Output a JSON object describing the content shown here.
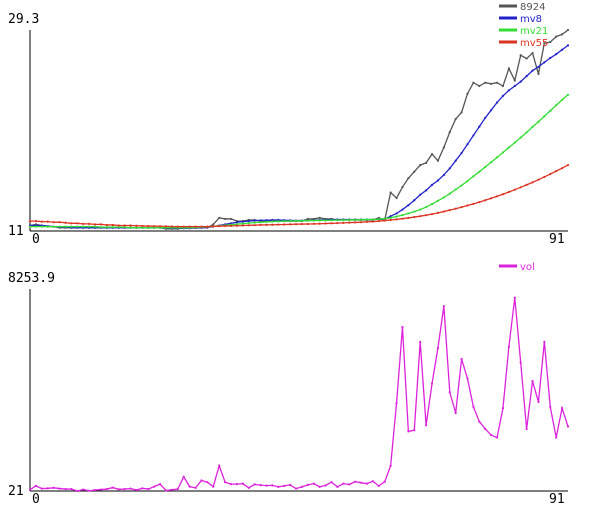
{
  "chart_data": [
    {
      "type": "line",
      "x_range": [
        0,
        91
      ],
      "y_range": [
        11,
        29.3
      ],
      "tick_labels": {
        "x_min": "0",
        "x_max": "91",
        "y_min": "11",
        "y_max": "29.3"
      },
      "grid": false,
      "legend_position": "top-right",
      "series": [
        {
          "name": "8924",
          "color": "#555555",
          "values": [
            11.5,
            11.6,
            11.5,
            11.4,
            11.4,
            11.3,
            11.3,
            11.3,
            11.3,
            11.3,
            11.3,
            11.3,
            11.3,
            11.3,
            11.3,
            11.3,
            11.3,
            11.3,
            11.3,
            11.3,
            11.3,
            11.3,
            11.3,
            11.2,
            11.2,
            11.2,
            11.3,
            11.3,
            11.3,
            11.3,
            11.3,
            11.6,
            12.2,
            12.1,
            12.1,
            11.9,
            11.9,
            12.0,
            12.0,
            11.9,
            11.9,
            11.9,
            11.9,
            11.9,
            11.9,
            11.9,
            11.9,
            12.1,
            12.1,
            12.2,
            12.1,
            12.1,
            12.0,
            12.0,
            12.0,
            12.0,
            12.0,
            12.0,
            12.0,
            12.2,
            12.0,
            14.5,
            14.0,
            15.0,
            15.8,
            16.4,
            17.0,
            17.2,
            18.0,
            17.4,
            18.6,
            20.0,
            21.2,
            21.8,
            23.5,
            24.5,
            24.2,
            24.5,
            24.4,
            24.5,
            24.2,
            25.8,
            24.7,
            27.0,
            26.7,
            27.2,
            25.3,
            28.1,
            28.2,
            28.7,
            28.9,
            29.3
          ]
        },
        {
          "name": "mv8",
          "color": "#2222cc",
          "values": [
            11.5,
            11.5,
            11.5,
            11.45,
            11.4,
            11.35,
            11.35,
            11.3,
            11.3,
            11.3,
            11.3,
            11.3,
            11.3,
            11.3,
            11.3,
            11.3,
            11.3,
            11.3,
            11.3,
            11.3,
            11.3,
            11.3,
            11.3,
            11.27,
            11.25,
            11.25,
            11.25,
            11.25,
            11.27,
            11.3,
            11.33,
            11.4,
            11.5,
            11.6,
            11.7,
            11.8,
            11.85,
            11.9,
            11.95,
            11.97,
            11.98,
            12.0,
            12.0,
            11.98,
            11.97,
            11.95,
            11.95,
            11.95,
            11.98,
            12.0,
            12.02,
            12.05,
            12.05,
            12.05,
            12.05,
            12.05,
            12.05,
            12.05,
            12.05,
            12.06,
            12.08,
            12.35,
            12.6,
            12.95,
            13.35,
            13.8,
            14.3,
            14.7,
            15.2,
            15.6,
            16.1,
            16.7,
            17.4,
            18.1,
            18.9,
            19.7,
            20.5,
            21.3,
            22.0,
            22.7,
            23.3,
            23.8,
            24.2,
            24.6,
            25.1,
            25.6,
            25.95,
            26.35,
            26.75,
            27.1,
            27.5,
            27.9
          ]
        },
        {
          "name": "mv21",
          "color": "#33dd33",
          "values": [
            11.4,
            11.4,
            11.4,
            11.4,
            11.4,
            11.4,
            11.4,
            11.4,
            11.4,
            11.4,
            11.4,
            11.4,
            11.35,
            11.35,
            11.35,
            11.35,
            11.35,
            11.3,
            11.3,
            11.3,
            11.3,
            11.3,
            11.3,
            11.3,
            11.3,
            11.3,
            11.3,
            11.3,
            11.32,
            11.35,
            11.38,
            11.42,
            11.47,
            11.52,
            11.57,
            11.62,
            11.67,
            11.72,
            11.76,
            11.8,
            11.83,
            11.86,
            11.88,
            11.9,
            11.91,
            11.92,
            11.93,
            11.94,
            11.95,
            11.96,
            11.97,
            11.98,
            11.99,
            12.0,
            12.01,
            12.02,
            12.03,
            12.04,
            12.05,
            12.07,
            12.12,
            12.2,
            12.32,
            12.45,
            12.6,
            12.76,
            12.95,
            13.18,
            13.45,
            13.75,
            14.05,
            14.4,
            14.78,
            15.15,
            15.55,
            15.98,
            16.4,
            16.83,
            17.26,
            17.7,
            18.15,
            18.6,
            19.05,
            19.5,
            19.98,
            20.48,
            20.95,
            21.45,
            21.95,
            22.45,
            22.95,
            23.4
          ]
        },
        {
          "name": "mv55",
          "color": "#dd3322",
          "values": [
            11.9,
            11.9,
            11.85,
            11.85,
            11.8,
            11.8,
            11.75,
            11.7,
            11.7,
            11.65,
            11.65,
            11.6,
            11.6,
            11.55,
            11.55,
            11.5,
            11.5,
            11.5,
            11.48,
            11.46,
            11.45,
            11.44,
            11.43,
            11.42,
            11.41,
            11.4,
            11.4,
            11.4,
            11.4,
            11.4,
            11.4,
            11.42,
            11.44,
            11.46,
            11.47,
            11.48,
            11.5,
            11.52,
            11.53,
            11.55,
            11.56,
            11.57,
            11.58,
            11.59,
            11.6,
            11.62,
            11.63,
            11.64,
            11.65,
            11.66,
            11.68,
            11.7,
            11.72,
            11.74,
            11.76,
            11.78,
            11.8,
            11.83,
            11.86,
            11.9,
            11.95,
            12.0,
            12.06,
            12.12,
            12.19,
            12.27,
            12.35,
            12.44,
            12.54,
            12.65,
            12.77,
            12.9,
            13.03,
            13.17,
            13.32,
            13.47,
            13.63,
            13.8,
            13.98,
            14.16,
            14.35,
            14.55,
            14.76,
            14.98,
            15.2,
            15.43,
            15.67,
            15.92,
            16.18,
            16.45,
            16.72,
            17.0
          ]
        }
      ]
    },
    {
      "type": "line",
      "x_range": [
        0,
        91
      ],
      "y_range": [
        21,
        8253.9
      ],
      "tick_labels": {
        "x_min": "0",
        "x_max": "91",
        "y_min": "21",
        "y_max": "8253.9"
      },
      "grid": false,
      "legend_position": "top-right",
      "series": [
        {
          "name": "vol",
          "color": "#dd22dd",
          "values": [
            80,
            230,
            120,
            130,
            150,
            120,
            100,
            100,
            21,
            80,
            30,
            60,
            80,
            100,
            160,
            90,
            100,
            120,
            60,
            130,
            100,
            200,
            300,
            40,
            70,
            100,
            600,
            200,
            150,
            450,
            380,
            200,
            1050,
            380,
            300,
            300,
            320,
            150,
            290,
            260,
            240,
            250,
            190,
            230,
            270,
            120,
            190,
            270,
            320,
            190,
            250,
            380,
            190,
            320,
            290,
            400,
            360,
            320,
            420,
            230,
            400,
            1050,
            3600,
            6700,
            2450,
            2500,
            6100,
            2700,
            4400,
            5850,
            7550,
            4050,
            3200,
            5400,
            4600,
            3450,
            2850,
            2550,
            2300,
            2200,
            3400,
            5900,
            7900,
            5250,
            2550,
            4500,
            3650,
            6100,
            3450,
            2200,
            3400,
            2650
          ]
        }
      ]
    }
  ]
}
